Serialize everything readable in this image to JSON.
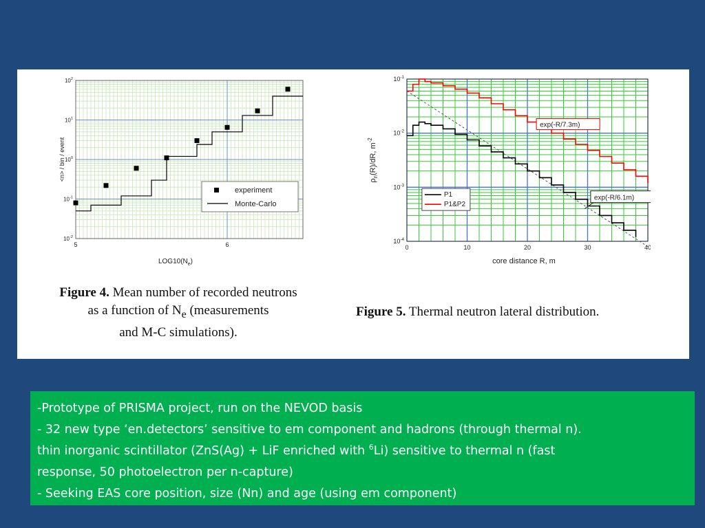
{
  "chart_data": [
    {
      "type": "scatter",
      "title": "",
      "xlabel": "LOG10(Ne)",
      "ylabel": "<n> / bin / event",
      "xlim": [
        5,
        6.5
      ],
      "ylim": [
        0.01,
        100
      ],
      "yscale": "log",
      "x_ticks": [
        "5",
        "6"
      ],
      "y_ticks": [
        "10-2",
        "10-1",
        "100",
        "101",
        "102"
      ],
      "legend_position": "bottom-right",
      "grid": true,
      "series": [
        {
          "name": "experiment",
          "x": [
            5.0,
            5.2,
            5.4,
            5.6,
            5.8,
            6.0,
            6.2,
            6.4
          ],
          "y": [
            0.08,
            0.22,
            0.6,
            1.1,
            3.0,
            6.5,
            17,
            60
          ]
        },
        {
          "name": "Monte-Carlo",
          "x": [
            5.0,
            5.1,
            5.3,
            5.5,
            5.6,
            5.8,
            5.9,
            6.1,
            6.3,
            6.5
          ],
          "y": [
            0.05,
            0.07,
            0.12,
            0.3,
            1.2,
            2.4,
            5.0,
            13,
            40,
            40
          ]
        }
      ]
    },
    {
      "type": "line",
      "title": "",
      "xlabel": "core distance R, m",
      "ylabel": "ρn(R)/dR, m-2",
      "xlim": [
        0,
        40
      ],
      "ylim": [
        0.0001,
        0.1
      ],
      "yscale": "log",
      "x_ticks": [
        "0",
        "10",
        "20",
        "30",
        "40"
      ],
      "y_ticks": [
        "10-4",
        "10-3",
        "10-2",
        "10-1"
      ],
      "legend_position": "bottom-left",
      "grid": true,
      "series": [
        {
          "name": "P1",
          "color": "#000000",
          "x": [
            0,
            1,
            2,
            3,
            4,
            6,
            8,
            10,
            12,
            14,
            16,
            18,
            20,
            22,
            24,
            26,
            28,
            30,
            32,
            34,
            36,
            38
          ],
          "y": [
            0.009,
            0.014,
            0.016,
            0.015,
            0.014,
            0.012,
            0.0095,
            0.0075,
            0.0058,
            0.0045,
            0.0035,
            0.0027,
            0.002,
            0.0015,
            0.0011,
            0.0008,
            0.0006,
            0.00045,
            0.0003,
            0.00022,
            0.00016,
            0.00012
          ]
        },
        {
          "name": "P1&P2",
          "color": "#ff0000",
          "x": [
            0,
            1,
            2,
            3,
            4,
            6,
            8,
            10,
            12,
            14,
            16,
            18,
            20,
            22,
            24,
            26,
            28,
            30,
            32,
            34,
            36,
            38,
            40
          ],
          "y": [
            0.06,
            0.08,
            0.1,
            0.09,
            0.085,
            0.075,
            0.065,
            0.055,
            0.045,
            0.035,
            0.027,
            0.021,
            0.016,
            0.013,
            0.01,
            0.0078,
            0.0062,
            0.0048,
            0.0037,
            0.0028,
            0.0021,
            0.0016,
            0.0012
          ]
        }
      ],
      "annotations": [
        "exp(-R/7.3m)",
        "exp(-R/6.1m)"
      ]
    }
  ],
  "figure4": {
    "label": "Figure 4.",
    "caption_line1": "Mean number of recorded neutrons",
    "caption_line2_a": "as a function of N",
    "caption_line2_sub": "e",
    "caption_line2_b": " (measurements",
    "caption_line3": "and M-C simulations)."
  },
  "figure5": {
    "label": "Figure 5.",
    "caption": "Thermal neutron lateral distribution."
  },
  "text_box": {
    "line1": "-Prototype of PRISMA project, run on the NEVOD basis",
    "line2": "- 32 new type ‘en.detectors’ sensitive to em component and hadrons (through thermal n).",
    "line3_a": "thin inorganic scintillator (ZnS(Ag) + LiF enriched with ",
    "line3_sup": "6",
    "line3_b": "Li) sensitive to thermal n (fast",
    "line4": "response, 50 photoelectron per n-capture)",
    "line5": "- Seeking EAS core position, size (Nn) and age (using em component)"
  }
}
